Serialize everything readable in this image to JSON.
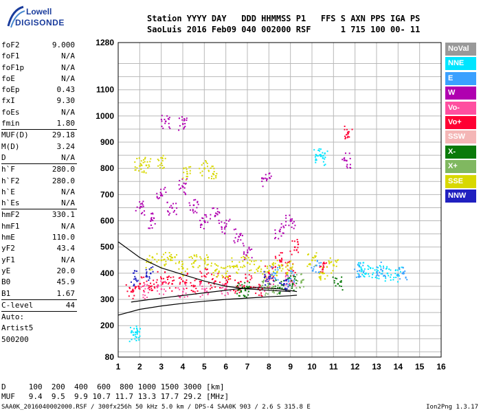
{
  "logo": {
    "line1": "Lowell",
    "line2": "DIGISONDE"
  },
  "header": {
    "row1": "Station YYYY DAY   DDD HHMMSS P1   FFS S AXN PPS IGA PS",
    "row2": "SaoLuis 2016 Feb09 040 002000 RSF      1 715 100 00- 11"
  },
  "params": [
    {
      "k": "foF2",
      "v": "9.000"
    },
    {
      "k": "foF1",
      "v": "N/A"
    },
    {
      "k": "foF1p",
      "v": "N/A"
    },
    {
      "k": "foE",
      "v": "N/A"
    },
    {
      "k": "foEp",
      "v": "0.43"
    },
    {
      "k": "fxI",
      "v": "9.30"
    },
    {
      "k": "foEs",
      "v": "N/A"
    },
    {
      "k": "fmin",
      "v": "1.80"
    },
    {
      "k": "MUF(D)",
      "v": "29.18"
    },
    {
      "k": "M(D)",
      "v": "3.24"
    },
    {
      "k": "D",
      "v": "N/A"
    },
    {
      "k": "h`F",
      "v": "280.0"
    },
    {
      "k": "h`F2",
      "v": "280.0"
    },
    {
      "k": "h`E",
      "v": "N/A"
    },
    {
      "k": "h`Es",
      "v": "N/A"
    },
    {
      "k": "hmF2",
      "v": "330.1"
    },
    {
      "k": "hmF1",
      "v": "N/A"
    },
    {
      "k": "hmE",
      "v": "110.0"
    },
    {
      "k": "yF2",
      "v": "43.4"
    },
    {
      "k": "yF1",
      "v": "N/A"
    },
    {
      "k": "yE",
      "v": "20.0"
    },
    {
      "k": "B0",
      "v": "45.9"
    },
    {
      "k": "B1",
      "v": "1.67"
    },
    {
      "k": "C-level",
      "v": "44"
    },
    {
      "k": "Auto:",
      "v": ""
    },
    {
      "k": "Artist5",
      "v": ""
    },
    {
      "k": "500200",
      "v": ""
    }
  ],
  "legend": [
    {
      "label": "NoVal",
      "color": "#999999"
    },
    {
      "label": "NNE",
      "color": "#00e5ff"
    },
    {
      "label": "E",
      "color": "#3aa0ff"
    },
    {
      "label": "W",
      "color": "#b000b0"
    },
    {
      "label": "Vo-",
      "color": "#ff4fa0"
    },
    {
      "label": "Vo+",
      "color": "#ff0033"
    },
    {
      "label": "SSW",
      "color": "#f4b6b6"
    },
    {
      "label": "X-",
      "color": "#0a7a0a"
    },
    {
      "label": "X+",
      "color": "#80b860"
    },
    {
      "label": "SSE",
      "color": "#d8d800"
    },
    {
      "label": "NNW",
      "color": "#2020c0"
    }
  ],
  "footer": {
    "d_row": "D     100  200  400  600  800 1000 1500 3000 [km]",
    "muf_row": "MUF   9.4  9.5  9.9 10.7 11.7 13.3 17.7 29.2 [MHz]",
    "file_line": "SAA0K_2016040002000.RSF / 300fx256h 50 kHz 5.0 km / DPS-4 SAA0K 903 / 2.6 S 315.8 E",
    "version": "Ion2Png 1.3.17"
  },
  "chart_data": {
    "type": "scatter",
    "xlabel": "",
    "ylabel": "",
    "x_ticks": [
      1,
      2,
      3,
      4,
      5,
      6,
      7,
      8,
      9,
      10,
      11,
      12,
      13,
      14,
      15,
      16
    ],
    "y_ticks": [
      80,
      200,
      300,
      400,
      500,
      600,
      700,
      800,
      900,
      1000,
      1100,
      1280
    ],
    "xlim": [
      1,
      16
    ],
    "ylim": [
      80,
      1280
    ],
    "grid": true,
    "series": [
      {
        "name": "Vo+",
        "color": "#ff0033",
        "points": [
          [
            1.6,
            330
          ],
          [
            2.0,
            360
          ],
          [
            2.5,
            350
          ],
          [
            3.0,
            380
          ],
          [
            3.5,
            360
          ],
          [
            4.0,
            370
          ],
          [
            4.5,
            350
          ],
          [
            5.0,
            390
          ],
          [
            5.5,
            370
          ],
          [
            6.0,
            360
          ],
          [
            6.5,
            350
          ],
          [
            7.0,
            370
          ],
          [
            7.5,
            340
          ],
          [
            8.0,
            400
          ],
          [
            8.5,
            450
          ],
          [
            9.0,
            420
          ],
          [
            9.2,
            500
          ],
          [
            10.5,
            420
          ],
          [
            11.7,
            940
          ]
        ]
      },
      {
        "name": "W",
        "color": "#b000b0",
        "points": [
          [
            2.0,
            650
          ],
          [
            2.5,
            600
          ],
          [
            3.0,
            700
          ],
          [
            3.5,
            650
          ],
          [
            4.0,
            730
          ],
          [
            4.5,
            660
          ],
          [
            5.0,
            600
          ],
          [
            5.5,
            620
          ],
          [
            6.0,
            580
          ],
          [
            6.6,
            540
          ],
          [
            7.0,
            480
          ],
          [
            7.9,
            760
          ],
          [
            8.5,
            560
          ],
          [
            9.0,
            600
          ],
          [
            11.6,
            830
          ],
          [
            3.2,
            980
          ],
          [
            4.0,
            970
          ]
        ]
      },
      {
        "name": "SSE",
        "color": "#d8d800",
        "points": [
          [
            2.0,
            810
          ],
          [
            2.3,
            812
          ],
          [
            2.5,
            440
          ],
          [
            3.0,
            450
          ],
          [
            3.5,
            460
          ],
          [
            4.0,
            420
          ],
          [
            4.5,
            440
          ],
          [
            5.0,
            450
          ],
          [
            5.5,
            410
          ],
          [
            6.0,
            400
          ],
          [
            6.5,
            430
          ],
          [
            7.0,
            440
          ],
          [
            7.5,
            420
          ],
          [
            8.0,
            410
          ],
          [
            8.5,
            420
          ],
          [
            9.0,
            420
          ],
          [
            10.0,
            450
          ],
          [
            10.5,
            400
          ],
          [
            11.0,
            430
          ],
          [
            5.0,
            800
          ],
          [
            5.4,
            780
          ],
          [
            3.0,
            820
          ],
          [
            4.2,
            780
          ]
        ]
      },
      {
        "name": "NNE",
        "color": "#00e5ff",
        "points": [
          [
            1.7,
            165
          ],
          [
            1.8,
            175
          ],
          [
            12.5,
            400
          ],
          [
            13.0,
            405
          ],
          [
            13.5,
            400
          ],
          [
            14.0,
            395
          ],
          [
            10.2,
            850
          ],
          [
            10.5,
            840
          ],
          [
            12.3,
            415
          ]
        ]
      },
      {
        "name": "E",
        "color": "#3aa0ff",
        "points": [
          [
            8.3,
            400
          ],
          [
            9.0,
            380
          ],
          [
            10.2,
            430
          ],
          [
            12.2,
            410
          ],
          [
            13.2,
            415
          ],
          [
            14.2,
            400
          ]
        ]
      },
      {
        "name": "Vo-",
        "color": "#ff4fa0",
        "points": [
          [
            2.2,
            330
          ],
          [
            3.0,
            340
          ],
          [
            4.0,
            330
          ],
          [
            5.0,
            340
          ],
          [
            6.0,
            340
          ],
          [
            8.0,
            360
          ],
          [
            9.0,
            370
          ]
        ]
      },
      {
        "name": "X-",
        "color": "#0a7a0a",
        "points": [
          [
            6.7,
            330
          ],
          [
            6.9,
            335
          ],
          [
            8.5,
            345
          ],
          [
            9.1,
            360
          ],
          [
            11.2,
            360
          ]
        ]
      },
      {
        "name": "X+",
        "color": "#80b860",
        "points": [
          [
            7.8,
            345
          ],
          [
            8.2,
            350
          ],
          [
            9.5,
            370
          ]
        ]
      },
      {
        "name": "NNW",
        "color": "#2020c0",
        "points": [
          [
            1.8,
            380
          ],
          [
            2.5,
            400
          ],
          [
            8.0,
            380
          ],
          [
            8.7,
            360
          ]
        ]
      }
    ],
    "curves": [
      {
        "color": "#000000",
        "points": [
          [
            1,
            240
          ],
          [
            2,
            262
          ],
          [
            3,
            275
          ],
          [
            4,
            285
          ],
          [
            5,
            293
          ],
          [
            6,
            300
          ],
          [
            7,
            305
          ],
          [
            8,
            310
          ],
          [
            9,
            314
          ],
          [
            9.3,
            316
          ]
        ]
      },
      {
        "color": "#000000",
        "points": [
          [
            1,
            520
          ],
          [
            2,
            460
          ],
          [
            3,
            420
          ],
          [
            4,
            395
          ],
          [
            5,
            370
          ],
          [
            6,
            350
          ],
          [
            7,
            340
          ],
          [
            8,
            335
          ],
          [
            9,
            330
          ]
        ]
      },
      {
        "color": "#000000",
        "points": [
          [
            1.6,
            290
          ],
          [
            2.5,
            300
          ],
          [
            3.5,
            310
          ],
          [
            4.5,
            320
          ],
          [
            5.5,
            330
          ],
          [
            6.5,
            340
          ],
          [
            7.5,
            345
          ],
          [
            8.5,
            340
          ],
          [
            9.3,
            330
          ]
        ]
      }
    ]
  }
}
